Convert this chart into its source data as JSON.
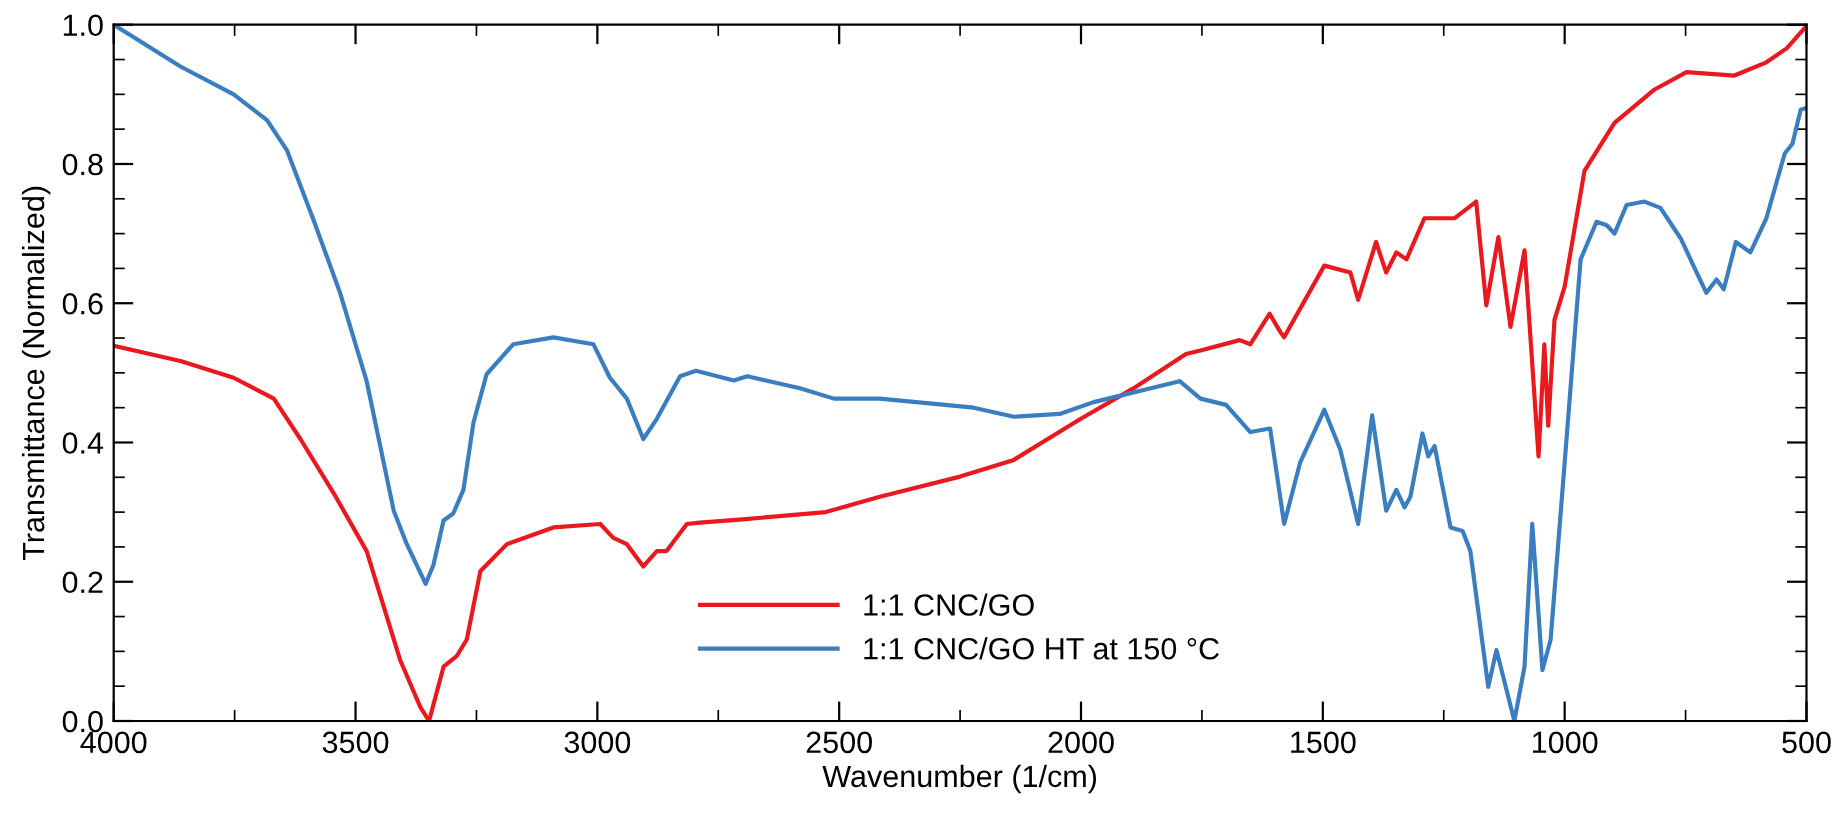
{
  "chart_data": {
    "type": "line",
    "xlabel": "Wavenumber (1/cm)",
    "ylabel": "Transmittance (Normalized)",
    "xlim": [
      4000,
      500
    ],
    "ylim": [
      0,
      1.0
    ],
    "xticks": [
      4000,
      3500,
      3000,
      2500,
      2000,
      1500,
      1000,
      500
    ],
    "yticks": [
      {
        "value": 0,
        "label": "0.0"
      },
      {
        "value": 0.2,
        "label": "0.2"
      },
      {
        "value": 0.4,
        "label": "0.4"
      },
      {
        "value": 0.6,
        "label": "0.6"
      },
      {
        "value": 0.8,
        "label": "0.8"
      },
      {
        "value": 1.0,
        "label": "1.0"
      }
    ],
    "grid": false,
    "legend": "bottom",
    "marker": "none",
    "line_style": "solid",
    "series": [
      {
        "name": "1:1 CNC/GO",
        "color": "#e8191f",
        "x": [
          4000,
          3862,
          3752,
          3669,
          3614,
          3545,
          3477,
          3408,
          3366,
          3348,
          3318,
          3291,
          3270,
          3242,
          3187,
          3091,
          2994,
          2967,
          2939,
          2905,
          2877,
          2857,
          2815,
          2788,
          2693,
          2528,
          2416,
          2250,
          2139,
          2003,
          1891,
          1783,
          1753,
          1672,
          1650,
          1610,
          1589,
          1580,
          1497,
          1443,
          1427,
          1390,
          1369,
          1348,
          1327,
          1290,
          1228,
          1183,
          1162,
          1137,
          1112,
          1083,
          1054,
          1042,
          1034,
          1021,
          1000,
          959,
          897,
          814,
          748,
          649,
          583,
          541,
          504
        ],
        "values": [
          0.539,
          0.517,
          0.493,
          0.463,
          0.405,
          0.327,
          0.244,
          0.088,
          0.02,
          0.0,
          0.078,
          0.093,
          0.117,
          0.215,
          0.254,
          0.278,
          0.283,
          0.263,
          0.254,
          0.222,
          0.244,
          0.244,
          0.283,
          0.285,
          0.29,
          0.3,
          0.322,
          0.351,
          0.375,
          0.433,
          0.478,
          0.527,
          0.532,
          0.547,
          0.541,
          0.585,
          0.56,
          0.551,
          0.654,
          0.644,
          0.605,
          0.688,
          0.644,
          0.673,
          0.663,
          0.722,
          0.722,
          0.746,
          0.597,
          0.695,
          0.566,
          0.676,
          0.38,
          0.541,
          0.424,
          0.576,
          0.624,
          0.79,
          0.859,
          0.907,
          0.932,
          0.927,
          0.946,
          0.966,
          0.995
        ]
      },
      {
        "name": "1:1 CNC/GO HT at 150 °C",
        "color": "#3a7ebf",
        "x": [
          4000,
          3862,
          3752,
          3683,
          3642,
          3587,
          3532,
          3477,
          3421,
          3394,
          3355,
          3339,
          3318,
          3298,
          3277,
          3256,
          3229,
          3174,
          3091,
          3008,
          2974,
          2939,
          2905,
          2877,
          2829,
          2796,
          2718,
          2690,
          2581,
          2511,
          2416,
          2222,
          2139,
          2044,
          1974,
          1796,
          1753,
          1700,
          1650,
          1609,
          1580,
          1547,
          1497,
          1464,
          1427,
          1398,
          1369,
          1348,
          1331,
          1319,
          1294,
          1282,
          1269,
          1236,
          1211,
          1195,
          1158,
          1141,
          1104,
          1083,
          1067,
          1046,
          1029,
          1000,
          967,
          934,
          913,
          897,
          872,
          835,
          802,
          760,
          727,
          707,
          686,
          671,
          646,
          616,
          583,
          545,
          529,
          512,
          503
        ],
        "values": [
          1.0,
          0.94,
          0.9,
          0.863,
          0.82,
          0.72,
          0.615,
          0.488,
          0.302,
          0.254,
          0.197,
          0.224,
          0.288,
          0.298,
          0.332,
          0.429,
          0.498,
          0.541,
          0.551,
          0.541,
          0.493,
          0.463,
          0.405,
          0.434,
          0.495,
          0.503,
          0.489,
          0.495,
          0.478,
          0.463,
          0.463,
          0.45,
          0.437,
          0.441,
          0.458,
          0.488,
          0.463,
          0.454,
          0.415,
          0.42,
          0.283,
          0.371,
          0.447,
          0.39,
          0.283,
          0.439,
          0.302,
          0.332,
          0.307,
          0.322,
          0.413,
          0.38,
          0.395,
          0.278,
          0.273,
          0.244,
          0.049,
          0.102,
          0.0,
          0.078,
          0.283,
          0.073,
          0.117,
          0.371,
          0.663,
          0.717,
          0.712,
          0.7,
          0.741,
          0.746,
          0.737,
          0.693,
          0.644,
          0.615,
          0.634,
          0.62,
          0.688,
          0.673,
          0.722,
          0.815,
          0.829,
          0.878,
          0.88
        ]
      }
    ]
  }
}
